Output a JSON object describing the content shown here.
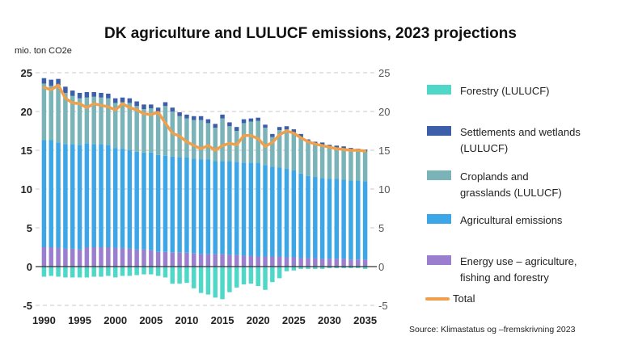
{
  "chart_data": {
    "type": "bar",
    "title": "DK agriculture and LULUCF emissions, 2023 projections",
    "ylabel": "mio. ton CO2e",
    "ylim": [
      -5,
      25
    ],
    "yticks": [
      -5,
      0,
      5,
      10,
      15,
      20,
      25
    ],
    "y2ticks": [
      -5,
      0,
      5,
      10,
      15,
      20,
      25
    ],
    "xticks": [
      "1990",
      "1995",
      "2000",
      "2005",
      "2010",
      "2015",
      "2020",
      "2025",
      "2030",
      "2035"
    ],
    "source": "Source:  Klimastatus og –fremskrivning 2023",
    "categories": [
      1990,
      1991,
      1992,
      1993,
      1994,
      1995,
      1996,
      1997,
      1998,
      1999,
      2000,
      2001,
      2002,
      2003,
      2004,
      2005,
      2006,
      2007,
      2008,
      2009,
      2010,
      2011,
      2012,
      2013,
      2014,
      2015,
      2016,
      2017,
      2018,
      2019,
      2020,
      2021,
      2022,
      2023,
      2024,
      2025,
      2026,
      2027,
      2028,
      2029,
      2030,
      2031,
      2032,
      2033,
      2034,
      2035
    ],
    "series": [
      {
        "name": "Forestry (LULUCF)",
        "color": "#4fd8c8",
        "values": [
          -1.3,
          -1.2,
          -1.3,
          -1.4,
          -1.4,
          -1.4,
          -1.4,
          -1.3,
          -1.3,
          -1.2,
          -1.4,
          -1.2,
          -1.2,
          -1.1,
          -1.0,
          -1.0,
          -1.2,
          -1.4,
          -2.2,
          -2.2,
          -2.1,
          -2.8,
          -3.4,
          -3.6,
          -4.0,
          -4.2,
          -3.3,
          -2.7,
          -2.3,
          -2.2,
          -2.5,
          -3.0,
          -2.0,
          -1.5,
          -0.6,
          -0.5,
          -0.3,
          -0.3,
          -0.3,
          -0.3,
          -0.2,
          -0.2,
          -0.2,
          -0.2,
          -0.2,
          -0.3
        ]
      },
      {
        "name": "Settlements and wetlands (LULUCF)",
        "color": "#3d5ea8",
        "values": [
          0.7,
          0.8,
          0.8,
          0.8,
          0.7,
          0.7,
          0.7,
          0.6,
          0.6,
          0.6,
          0.6,
          0.6,
          0.6,
          0.6,
          0.6,
          0.5,
          0.5,
          0.5,
          0.5,
          0.5,
          0.5,
          0.5,
          0.5,
          0.5,
          0.5,
          0.5,
          0.5,
          0.5,
          0.5,
          0.4,
          0.4,
          0.4,
          0.4,
          0.4,
          0.4,
          0.4,
          0.4,
          0.3,
          0.3,
          0.3,
          0.3,
          0.3,
          0.3,
          0.3,
          0.3,
          0.3
        ]
      },
      {
        "name": "Croplands and grasslands (LULUCF)",
        "color": "#7ab3b8",
        "values": [
          7.3,
          7.0,
          7.4,
          6.6,
          6.2,
          6.0,
          5.9,
          6.1,
          6.0,
          6.0,
          5.8,
          6.0,
          6.1,
          5.9,
          5.6,
          5.7,
          5.6,
          6.4,
          5.8,
          5.3,
          5.0,
          5.0,
          5.1,
          4.7,
          4.3,
          5.5,
          4.5,
          4.0,
          5.1,
          5.3,
          5.4,
          4.8,
          3.8,
          4.8,
          5.1,
          4.9,
          4.7,
          4.4,
          4.2,
          4.3,
          4.1,
          4.0,
          4.0,
          3.9,
          3.8,
          3.8
        ]
      },
      {
        "name": "Agricultural emissions",
        "color": "#3da6e6",
        "values": [
          13.8,
          13.8,
          13.6,
          13.5,
          13.5,
          13.5,
          13.4,
          13.3,
          13.3,
          13.2,
          12.9,
          12.8,
          12.7,
          12.6,
          12.5,
          12.6,
          12.5,
          12.4,
          12.4,
          12.3,
          12.3,
          12.2,
          12.2,
          12.2,
          12.0,
          12.0,
          12.1,
          12.0,
          12.0,
          12.0,
          12.1,
          11.8,
          11.6,
          11.5,
          11.4,
          11.2,
          10.9,
          10.6,
          10.5,
          10.4,
          10.3,
          10.3,
          10.2,
          10.2,
          10.2,
          10.1
        ]
      },
      {
        "name": "Energy use – agriculture, fishing and forestry",
        "color": "#9b7fcf",
        "values": [
          2.5,
          2.5,
          2.4,
          2.3,
          2.3,
          2.2,
          2.5,
          2.5,
          2.5,
          2.5,
          2.4,
          2.4,
          2.3,
          2.2,
          2.2,
          2.1,
          1.9,
          1.9,
          1.8,
          1.8,
          1.8,
          1.7,
          1.6,
          1.6,
          1.6,
          1.6,
          1.5,
          1.5,
          1.4,
          1.4,
          1.3,
          1.3,
          1.3,
          1.3,
          1.2,
          1.2,
          1.1,
          1.1,
          1.1,
          1.0,
          1.0,
          1.0,
          1.0,
          0.9,
          0.9,
          0.9
        ]
      },
      {
        "name": "Total",
        "color": "#f0a04b",
        "type": "line",
        "values": [
          23.1,
          22.8,
          23.4,
          21.7,
          21.1,
          21.0,
          20.5,
          21.0,
          20.8,
          20.6,
          20.2,
          21.0,
          20.5,
          20.2,
          19.7,
          19.6,
          19.9,
          18.5,
          17.2,
          16.8,
          16.1,
          15.6,
          15.2,
          15.6,
          15.0,
          15.6,
          15.9,
          15.7,
          16.9,
          16.9,
          16.5,
          15.5,
          16.0,
          17.0,
          17.5,
          17.2,
          16.6,
          16.1,
          15.8,
          15.6,
          15.4,
          15.2,
          15.1,
          15.0,
          15.0,
          14.9
        ]
      }
    ]
  },
  "legend": [
    {
      "label": "Forestry (LULUCF)",
      "color": "#4fd8c8"
    },
    {
      "label": "Settlements and wetlands (LULUCF)",
      "color": "#3d5ea8"
    },
    {
      "label": "Croplands and grasslands (LULUCF)",
      "color": "#7ab3b8"
    },
    {
      "label": "Agricultural emissions",
      "color": "#3da6e6"
    },
    {
      "label": "Energy use – agriculture, fishing and forestry",
      "color": "#9b7fcf"
    },
    {
      "label": "Total",
      "color": "#f0a04b"
    }
  ]
}
